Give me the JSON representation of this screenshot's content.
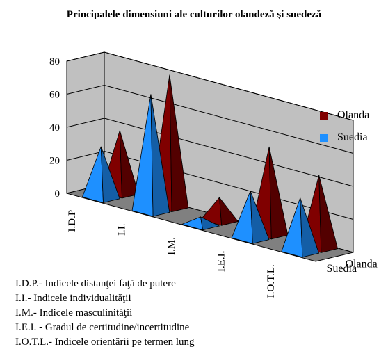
{
  "chart_data": {
    "type": "bar",
    "shape": "3d-pyramid",
    "title": "Principalele dimensiuni ale culturilor olandeză şi suedeză",
    "categories": [
      "I.D.P",
      "I.I.",
      "I.M.",
      "I.E.I.",
      "I.O.T.L."
    ],
    "series": [
      {
        "name": "Olanda",
        "values": [
          38,
          80,
          14,
          53,
          44
        ],
        "color": "#800000"
      },
      {
        "name": "Suedia",
        "values": [
          31,
          71,
          5,
          29,
          33
        ],
        "color": "#1E90FF"
      }
    ],
    "depth_labels": [
      "Olanda",
      "Suedia"
    ],
    "ylim": [
      0,
      80
    ],
    "yticks": [
      0,
      20,
      40,
      60,
      80
    ],
    "grid": true,
    "legend_position": "right",
    "wall_color": "#C0C0C0"
  },
  "notes": [
    "I.D.P.- Indicele distanţei faţă de putere",
    "I.I.- Indicele individualităţii",
    "I.M.- Indicele masculinităţii",
    "I.E.I. - Gradul de certitudine/incertitudine",
    "I.O.T.L.- Indicele orientării pe termen lung"
  ]
}
